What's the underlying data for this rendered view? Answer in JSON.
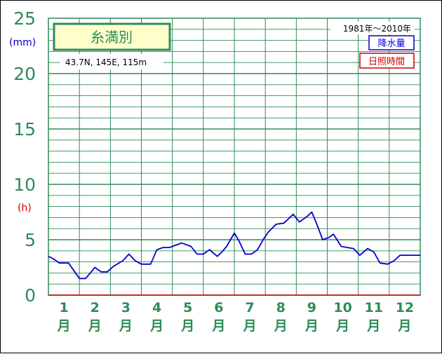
{
  "chart_data": {
    "type": "line",
    "title": "糸満別",
    "location": "43.7N,  145E,  115m",
    "period": "1981年～2010年",
    "legend": [
      {
        "label": "降水量",
        "color": "#0000cc"
      },
      {
        "label": "日照時間",
        "color": "#cc0000"
      }
    ],
    "y_unit_top": "(mm)",
    "y_unit_mid": "(h)",
    "yticks": [
      "0",
      "5",
      "10",
      "15",
      "20",
      "25"
    ],
    "ylim": [
      0,
      25
    ],
    "months": [
      "1",
      "2",
      "3",
      "4",
      "5",
      "6",
      "7",
      "8",
      "9",
      "10",
      "11",
      "12"
    ],
    "month_suffix": "月",
    "grid": true,
    "series": [
      {
        "name": "降水量",
        "color": "#0000cc",
        "x": [
          0,
          0.15,
          0.35,
          0.65,
          0.8,
          1.0,
          1.2,
          1.5,
          1.7,
          1.9,
          2.1,
          2.4,
          2.6,
          2.8,
          3.0,
          3.3,
          3.5,
          3.7,
          3.9,
          4.1,
          4.3,
          4.6,
          4.8,
          5.0,
          5.2,
          5.45,
          5.6,
          5.75,
          6.0,
          6.15,
          6.35,
          6.55,
          6.75,
          6.95,
          7.1,
          7.35,
          7.6,
          7.9,
          8.1,
          8.35,
          8.5,
          8.65,
          8.85,
          9.05,
          9.2,
          9.45,
          9.65,
          9.85,
          10.05,
          10.3,
          10.5,
          10.7,
          10.95,
          11.15,
          11.35,
          11.6,
          11.8,
          12.0
        ],
        "y": [
          3.5,
          3.3,
          2.9,
          2.9,
          2.3,
          1.5,
          1.5,
          2.5,
          2.1,
          2.1,
          2.6,
          3.1,
          3.7,
          3.1,
          2.8,
          2.8,
          4.1,
          4.3,
          4.3,
          4.5,
          4.7,
          4.4,
          3.7,
          3.7,
          4.1,
          3.5,
          3.9,
          4.4,
          5.6,
          4.9,
          3.7,
          3.7,
          4.1,
          5.1,
          5.7,
          6.4,
          6.5,
          7.3,
          6.6,
          7.1,
          7.5,
          6.5,
          5.0,
          5.2,
          5.5,
          4.4,
          4.3,
          4.2,
          3.6,
          4.2,
          3.9,
          2.9,
          2.8,
          3.1,
          3.6,
          3.6,
          3.6,
          3.6
        ]
      }
    ]
  }
}
